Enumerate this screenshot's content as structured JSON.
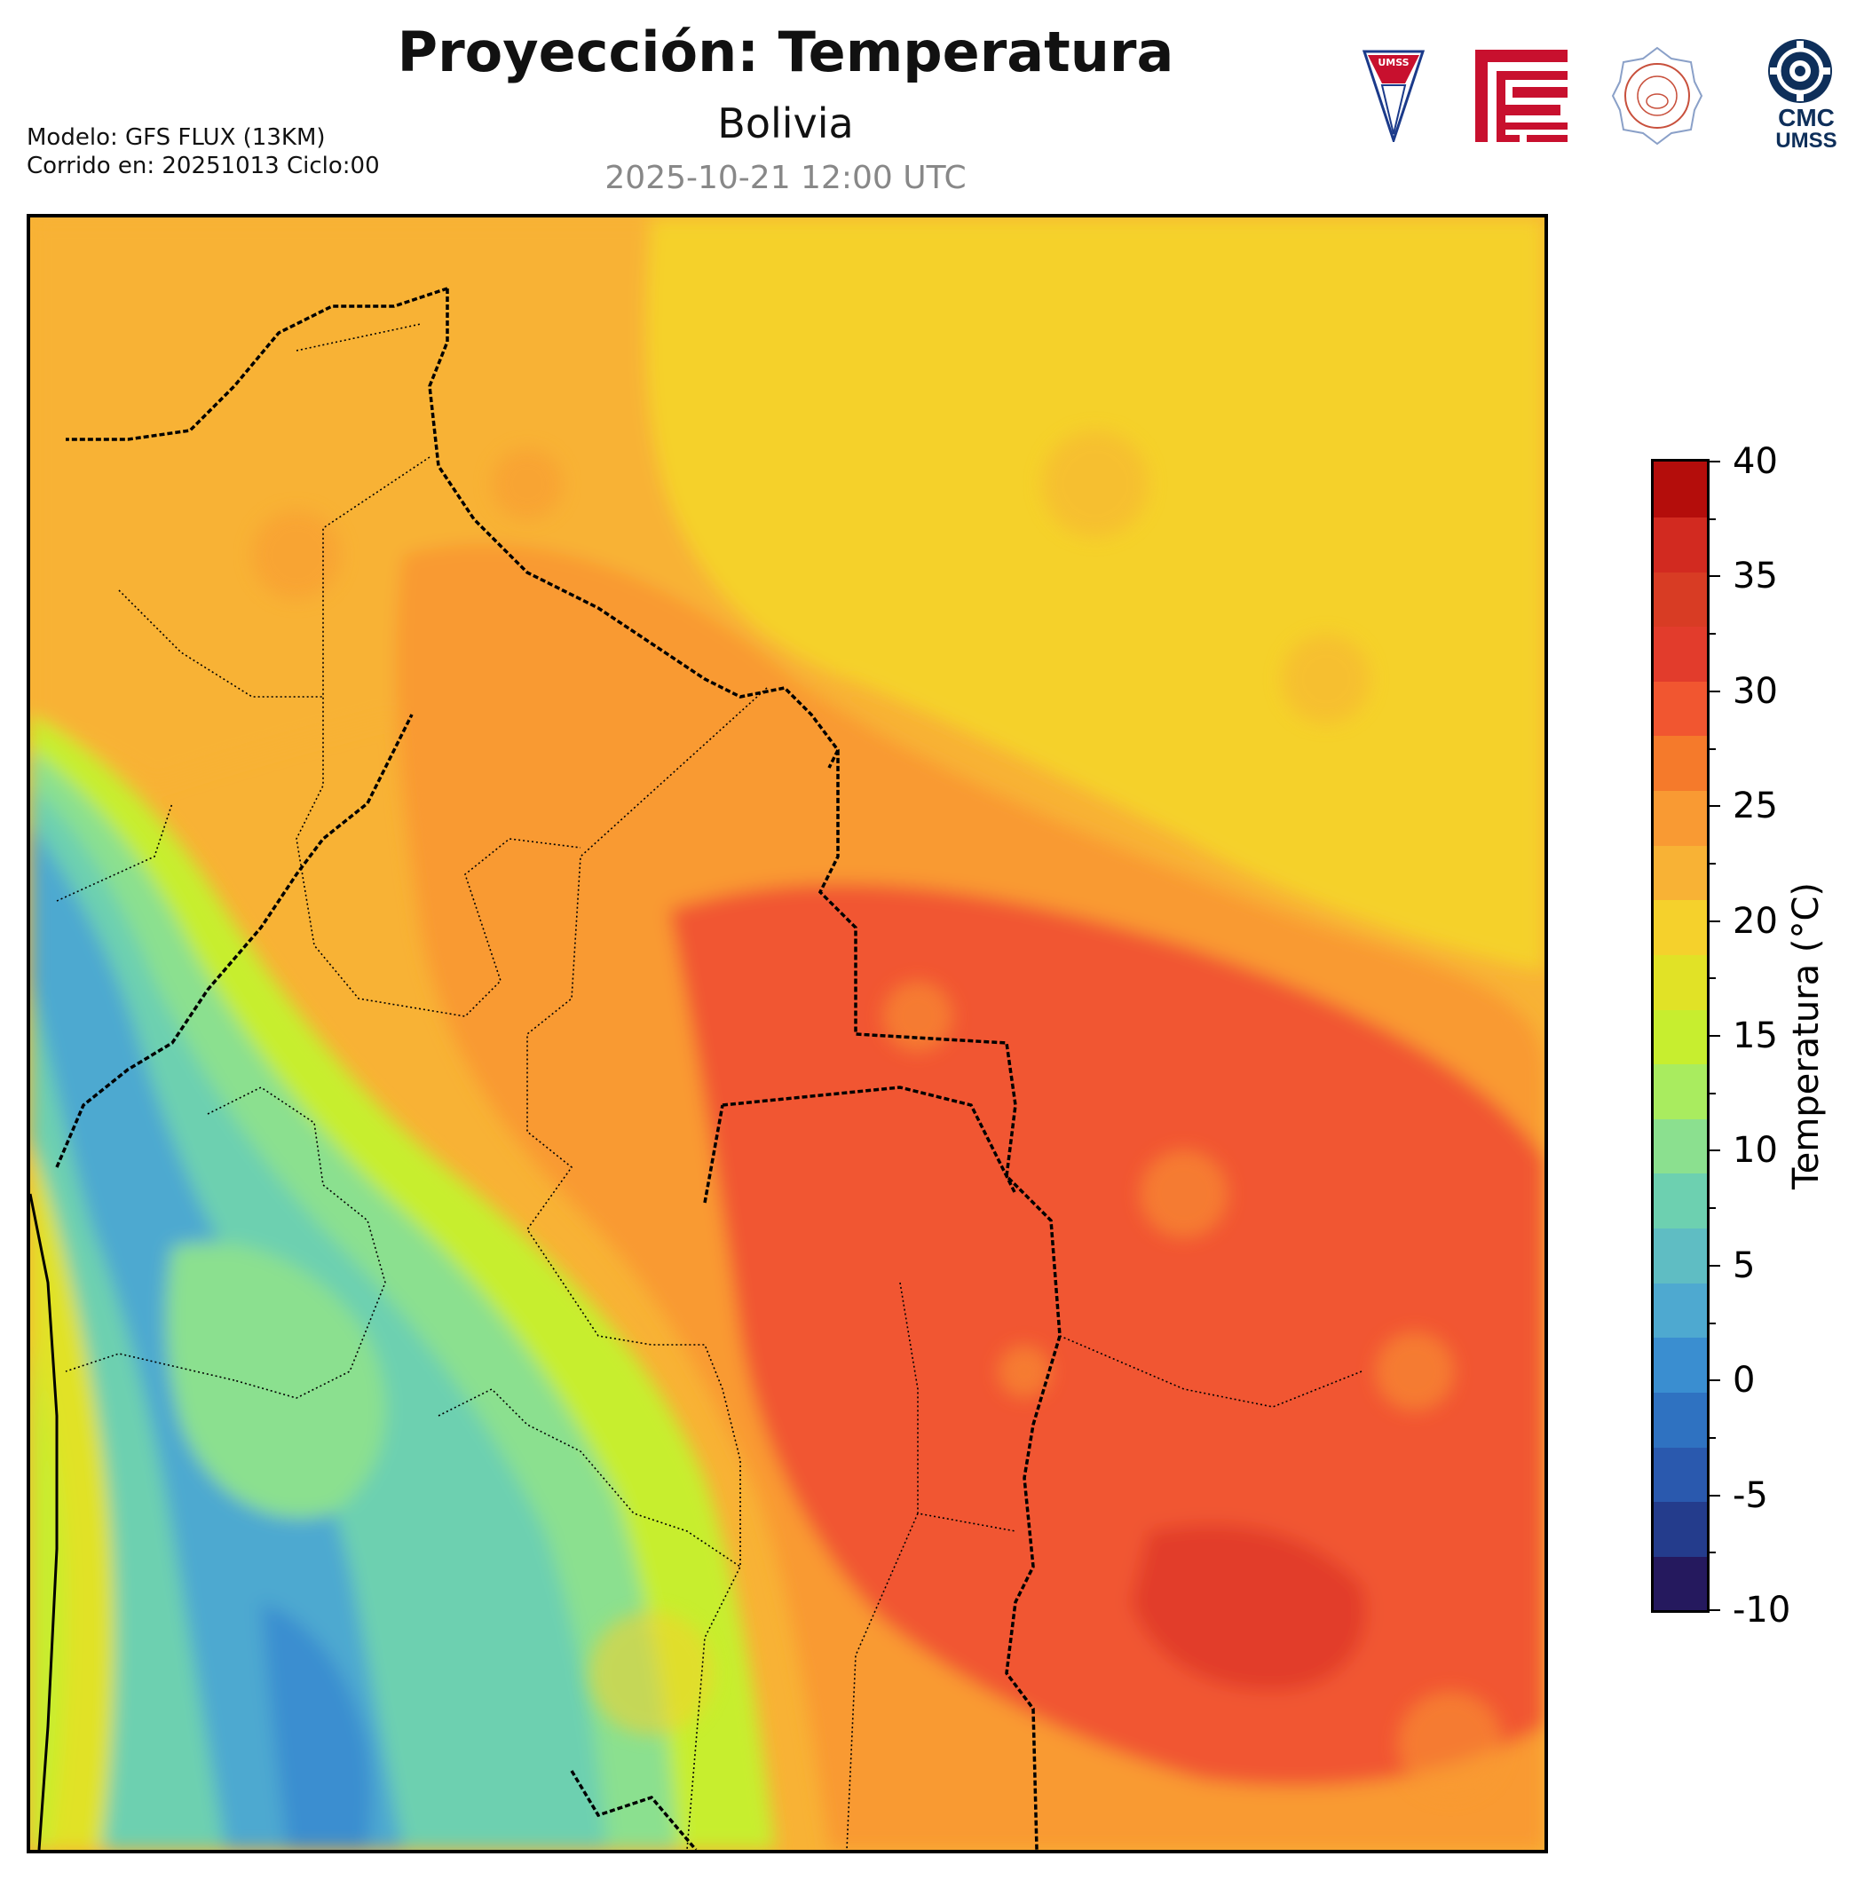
{
  "header": {
    "title": "Proyección: Temperatura",
    "subtitle": "Bolivia",
    "timestamp": "2025-10-21 12:00 UTC",
    "model": "Modelo: GFS FLUX (13KM)",
    "run": "Corrido en: 20251013 Ciclo:00"
  },
  "logos": {
    "umss_label": "UMSS",
    "cmc_line1": "CMC",
    "cmc_line2": "UMSS"
  },
  "colorbar": {
    "title": "Temperatura (°C)",
    "ticks": [
      "40",
      "35",
      "30",
      "25",
      "20",
      "15",
      "10",
      "5",
      "0",
      "-5",
      "-10"
    ],
    "min": -10,
    "max": 40,
    "step": 2.5,
    "colors": [
      "#25195e",
      "#243c8c",
      "#2a59ae",
      "#2f72c1",
      "#3a8ed0",
      "#4ea9d0",
      "#5fbdc3",
      "#6dd0b0",
      "#8be08f",
      "#a9ec5f",
      "#c7ee2f",
      "#e1e226",
      "#f5d12c",
      "#f8b235",
      "#f99a33",
      "#f57a2b",
      "#f15630",
      "#e23c2c",
      "#d83c24",
      "#d22a20",
      "#b40d0b"
    ]
  },
  "map": {
    "region": "Bolivia",
    "field": "Temperatura",
    "unit": "°C"
  }
}
